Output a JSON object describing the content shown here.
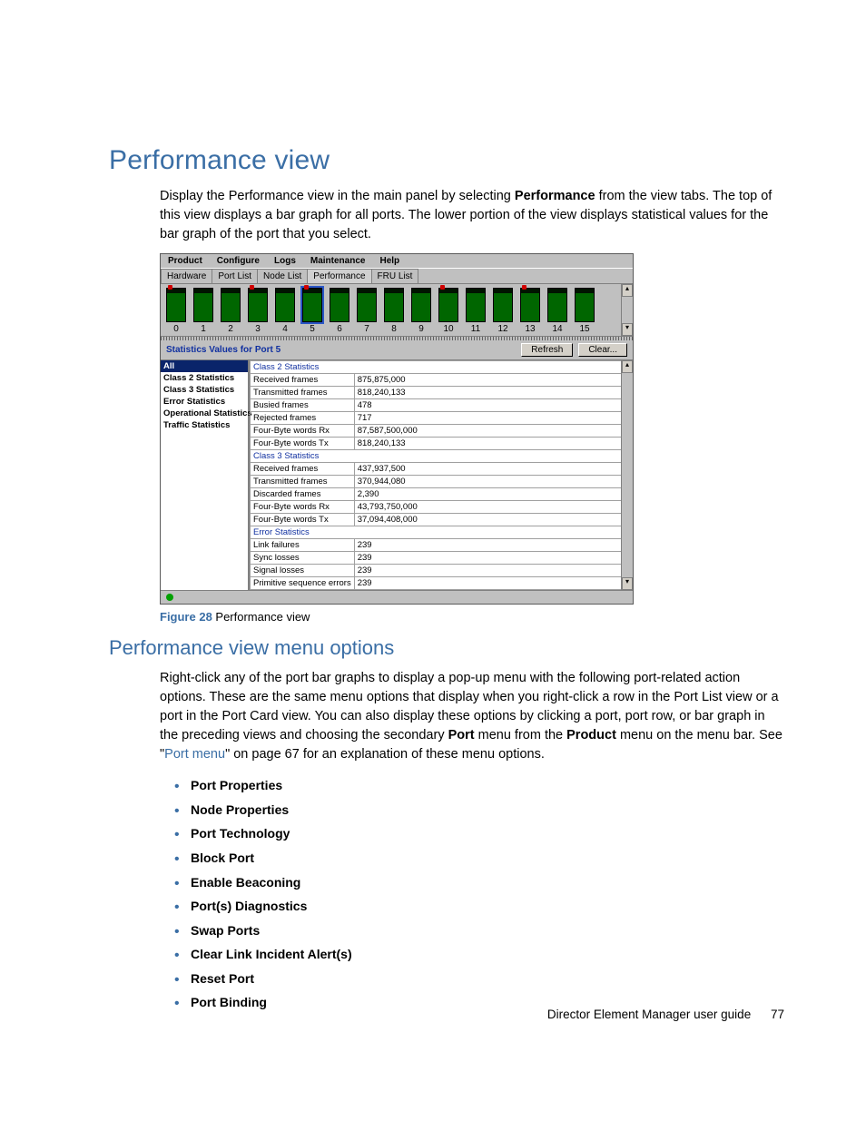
{
  "heading": "Performance view",
  "intro_before_bold": "Display the Performance view in the main panel by selecting ",
  "intro_bold": "Performance",
  "intro_after_bold": " from the view tabs. The top of this view displays a bar graph for all ports. The lower portion of the view displays statistical values for the bar graph of the port that you select.",
  "figure_label": "Figure 28",
  "figure_text": " Performance view",
  "subheading": "Performance view menu options",
  "para2_a": "Right-click any of the port bar graphs to display a pop-up menu with the following port-related action options. These are the same menu options that display when you right-click a row in the Port List view or a port in the Port Card view. You can also display these options by clicking a port, port row, or bar graph in the preceding views and choosing the secondary ",
  "para2_bold1": "Port",
  "para2_b": " menu from the ",
  "para2_bold2": "Product",
  "para2_c": " menu on the menu bar. See \"",
  "para2_link": "Port menu",
  "para2_d": "\" on page 67 for an explanation of these menu options.",
  "bullets": [
    "Port Properties",
    "Node Properties",
    "Port Technology",
    "Block Port",
    "Enable Beaconing",
    "Port(s) Diagnostics",
    "Swap Ports",
    "Clear Link Incident Alert(s)",
    "Reset Port",
    "Port Binding"
  ],
  "footer_text": "Director Element Manager user guide",
  "footer_page": "77",
  "app": {
    "menus": [
      "Product",
      "Configure",
      "Logs",
      "Maintenance",
      "Help"
    ],
    "tabs": [
      "Hardware",
      "Port List",
      "Node List",
      "Performance",
      "FRU List"
    ],
    "active_tab": 3,
    "ports": [
      {
        "n": "0",
        "fill": 85,
        "alert": true
      },
      {
        "n": "1",
        "fill": 85,
        "alert": false
      },
      {
        "n": "2",
        "fill": 85,
        "alert": false
      },
      {
        "n": "3",
        "fill": 85,
        "alert": true
      },
      {
        "n": "4",
        "fill": 85,
        "alert": false
      },
      {
        "n": "5",
        "fill": 85,
        "alert": true,
        "selected": true
      },
      {
        "n": "6",
        "fill": 85,
        "alert": false
      },
      {
        "n": "7",
        "fill": 85,
        "alert": false
      },
      {
        "n": "8",
        "fill": 85,
        "alert": false
      },
      {
        "n": "9",
        "fill": 85,
        "alert": false
      },
      {
        "n": "10",
        "fill": 85,
        "alert": true
      },
      {
        "n": "11",
        "fill": 85,
        "alert": false
      },
      {
        "n": "12",
        "fill": 85,
        "alert": false
      },
      {
        "n": "13",
        "fill": 85,
        "alert": true
      },
      {
        "n": "14",
        "fill": 85,
        "alert": false
      },
      {
        "n": "15",
        "fill": 85,
        "alert": false
      }
    ],
    "stats_title": "Statistics Values for Port 5",
    "btn_refresh": "Refresh",
    "btn_clear": "Clear...",
    "categories": [
      "All",
      "Class 2 Statistics",
      "Class 3 Statistics",
      "Error Statistics",
      "Operational Statistics",
      "Traffic Statistics"
    ],
    "selected_category": 0,
    "rows": [
      {
        "section": "Class 2 Statistics"
      },
      {
        "label": "Received frames",
        "value": "875,875,000"
      },
      {
        "label": "Transmitted frames",
        "value": "818,240,133"
      },
      {
        "label": "Busied frames",
        "value": "478"
      },
      {
        "label": "Rejected frames",
        "value": "717"
      },
      {
        "label": "Four-Byte words Rx",
        "value": "87,587,500,000"
      },
      {
        "label": "Four-Byte words Tx",
        "value": "818,240,133"
      },
      {
        "section": "Class 3 Statistics"
      },
      {
        "label": "Received frames",
        "value": "437,937,500"
      },
      {
        "label": "Transmitted frames",
        "value": "370,944,080"
      },
      {
        "label": "Discarded frames",
        "value": "2,390"
      },
      {
        "label": "Four-Byte words Rx",
        "value": "43,793,750,000"
      },
      {
        "label": "Four-Byte words Tx",
        "value": "37,094,408,000"
      },
      {
        "section": "Error Statistics"
      },
      {
        "label": "Link failures",
        "value": "239"
      },
      {
        "label": "Sync losses",
        "value": "239"
      },
      {
        "label": "Signal losses",
        "value": "239"
      },
      {
        "label": "Primitive sequence errors",
        "value": "239"
      }
    ]
  }
}
